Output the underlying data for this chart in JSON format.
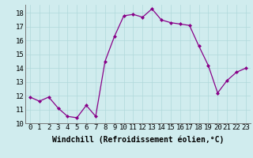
{
  "x": [
    0,
    1,
    2,
    3,
    4,
    5,
    6,
    7,
    8,
    9,
    10,
    11,
    12,
    13,
    14,
    15,
    16,
    17,
    18,
    19,
    20,
    21,
    22,
    23
  ],
  "y": [
    11.9,
    11.6,
    11.9,
    11.1,
    10.5,
    10.4,
    11.3,
    10.5,
    14.5,
    16.3,
    17.8,
    17.9,
    17.7,
    18.3,
    17.5,
    17.3,
    17.2,
    17.1,
    15.6,
    14.2,
    12.2,
    13.1,
    13.7,
    14.0
  ],
  "line_color": "#880088",
  "marker": "D",
  "marker_size": 2.0,
  "bg_color": "#d0ecee",
  "grid_color": "#b0d8da",
  "xlabel": "Windchill (Refroidissement éolien,°C)",
  "xlim": [
    -0.5,
    23.5
  ],
  "ylim": [
    10,
    18.6
  ],
  "ytick_values": [
    10,
    11,
    12,
    13,
    14,
    15,
    16,
    17,
    18
  ],
  "tick_fontsize": 6.5,
  "xlabel_fontsize": 7.0,
  "spine_color": "#777777",
  "linewidth": 0.9
}
